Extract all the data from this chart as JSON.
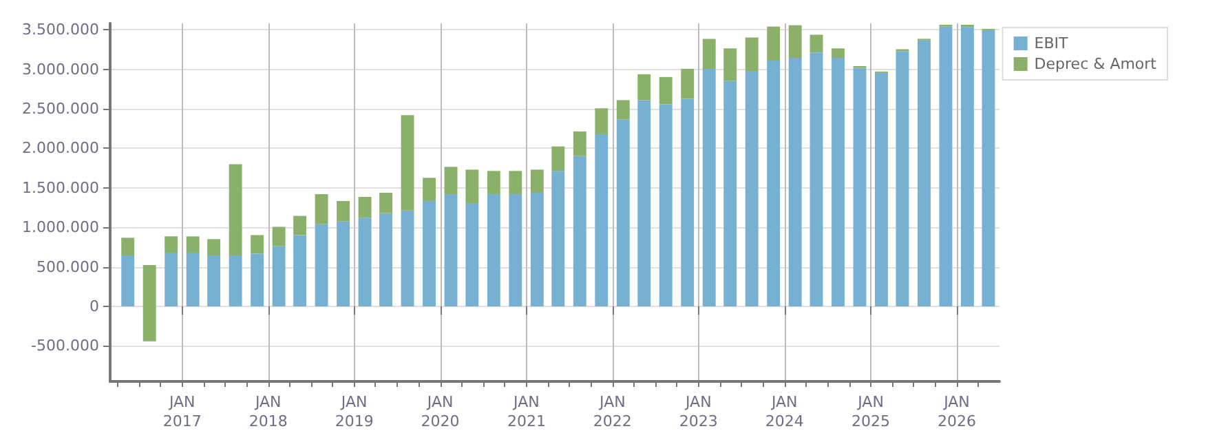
{
  "chart_data": {
    "type": "bar",
    "stacked": true,
    "legend": "top right",
    "grid": true,
    "x": [
      "2016-05-15",
      "2016-08-15",
      "2016-11-15",
      "2017-02-15",
      "2017-05-15",
      "2017-08-15",
      "2017-11-15",
      "2018-02-15",
      "2018-05-15",
      "2018-08-15",
      "2018-11-15",
      "2019-02-15",
      "2019-05-15",
      "2019-08-15",
      "2019-11-15",
      "2020-02-15",
      "2020-05-15",
      "2020-08-15",
      "2020-11-15",
      "2021-02-15",
      "2021-05-15",
      "2021-08-15",
      "2021-11-15",
      "2022-02-15",
      "2022-05-15",
      "2022-08-15",
      "2022-11-15",
      "2023-02-15",
      "2023-05-15",
      "2023-08-15",
      "2023-11-15",
      "2024-02-15",
      "2024-05-15",
      "2024-08-15",
      "2024-11-15",
      "2025-02-15",
      "2025-05-15",
      "2025-08-15",
      "2025-11-15",
      "2026-02-15",
      "2026-05-15"
    ],
    "series": [
      {
        "name": "EBIT",
        "color": "#78b0d2",
        "values": [
          644000,
          null,
          678000,
          678000,
          644000,
          644000,
          667000,
          764000,
          902000,
          1040000,
          1075000,
          1121000,
          1178000,
          1213000,
          1333000,
          1420000,
          1299000,
          1420000,
          1420000,
          1437000,
          1713000,
          1902000,
          2178000,
          2368000,
          2609000,
          2557000,
          2626000,
          3006000,
          2851000,
          2971000,
          3109000,
          3144000,
          3213000,
          3144000,
          3017000,
          2954000,
          3230000,
          3368000,
          3540000,
          3534000,
          3494000
        ]
      },
      {
        "name": "Deprec & Amort",
        "color": "#8ab06a",
        "base": [
          null,
          -443000,
          null,
          null,
          null,
          null,
          null,
          null,
          null,
          null,
          null,
          null,
          null,
          null,
          null,
          null,
          null,
          null,
          null,
          null,
          null,
          null,
          null,
          null,
          null,
          null,
          null,
          null,
          null,
          null,
          null,
          null,
          null,
          null,
          null,
          null,
          null,
          null,
          null,
          null,
          null
        ],
        "values": [
          224000,
          966000,
          207000,
          207000,
          207000,
          1155000,
          235000,
          242000,
          242000,
          380000,
          258000,
          264000,
          259000,
          1207000,
          293000,
          345000,
          431000,
          293000,
          293000,
          293000,
          310000,
          311000,
          328000,
          241000,
          328000,
          345000,
          380000,
          379000,
          413000,
          431000,
          431000,
          413000,
          224000,
          120000,
          23000,
          17000,
          23000,
          17000,
          23000,
          29000,
          17000
        ]
      }
    ],
    "xlim": [
      "2016-03-01",
      "2026-07-01"
    ],
    "xticks": [
      {
        "value": "2016-04-01",
        "label": null
      },
      {
        "value": "2016-07-01",
        "label": null
      },
      {
        "value": "2016-10-01",
        "label": null
      },
      {
        "value": "2017-01-01",
        "label": "JAN\n2017"
      },
      {
        "value": "2017-04-01",
        "label": null
      },
      {
        "value": "2017-07-01",
        "label": null
      },
      {
        "value": "2017-10-01",
        "label": null
      },
      {
        "value": "2018-01-01",
        "label": "JAN\n2018"
      },
      {
        "value": "2018-04-01",
        "label": null
      },
      {
        "value": "2018-07-01",
        "label": null
      },
      {
        "value": "2018-10-01",
        "label": null
      },
      {
        "value": "2019-01-01",
        "label": "JAN\n2019"
      },
      {
        "value": "2019-04-01",
        "label": null
      },
      {
        "value": "2019-07-01",
        "label": null
      },
      {
        "value": "2019-10-01",
        "label": null
      },
      {
        "value": "2020-01-01",
        "label": "JAN\n2020"
      },
      {
        "value": "2020-04-01",
        "label": null
      },
      {
        "value": "2020-07-01",
        "label": null
      },
      {
        "value": "2020-10-01",
        "label": null
      },
      {
        "value": "2021-01-01",
        "label": "JAN\n2021"
      },
      {
        "value": "2021-04-01",
        "label": null
      },
      {
        "value": "2021-07-01",
        "label": null
      },
      {
        "value": "2021-10-01",
        "label": null
      },
      {
        "value": "2022-01-01",
        "label": "JAN\n2022"
      },
      {
        "value": "2022-04-01",
        "label": null
      },
      {
        "value": "2022-07-01",
        "label": null
      },
      {
        "value": "2022-10-01",
        "label": null
      },
      {
        "value": "2023-01-01",
        "label": "JAN\n2023"
      },
      {
        "value": "2023-04-01",
        "label": null
      },
      {
        "value": "2023-07-01",
        "label": null
      },
      {
        "value": "2023-10-01",
        "label": null
      },
      {
        "value": "2024-01-01",
        "label": "JAN\n2024"
      },
      {
        "value": "2024-04-01",
        "label": null
      },
      {
        "value": "2024-07-01",
        "label": null
      },
      {
        "value": "2024-10-01",
        "label": null
      },
      {
        "value": "2025-01-01",
        "label": "JAN\n2025"
      },
      {
        "value": "2025-04-01",
        "label": null
      },
      {
        "value": "2025-07-01",
        "label": null
      },
      {
        "value": "2025-10-01",
        "label": null
      },
      {
        "value": "2026-01-01",
        "label": "JAN\n2026"
      },
      {
        "value": "2026-04-01",
        "label": null
      }
    ],
    "ylim": [
      -950000,
      3580000
    ],
    "yticks": [
      {
        "value": -500000,
        "label": "-500.000"
      },
      {
        "value": 0,
        "label": "0"
      },
      {
        "value": 500000,
        "label": "500.000"
      },
      {
        "value": 1000000,
        "label": "1.000.000"
      },
      {
        "value": 1500000,
        "label": "1.500.000"
      },
      {
        "value": 2000000,
        "label": "2.000.000"
      },
      {
        "value": 2500000,
        "label": "2.500.000"
      },
      {
        "value": 3000000,
        "label": "3.000.000"
      },
      {
        "value": 3500000,
        "label": "3.500.000"
      }
    ]
  }
}
